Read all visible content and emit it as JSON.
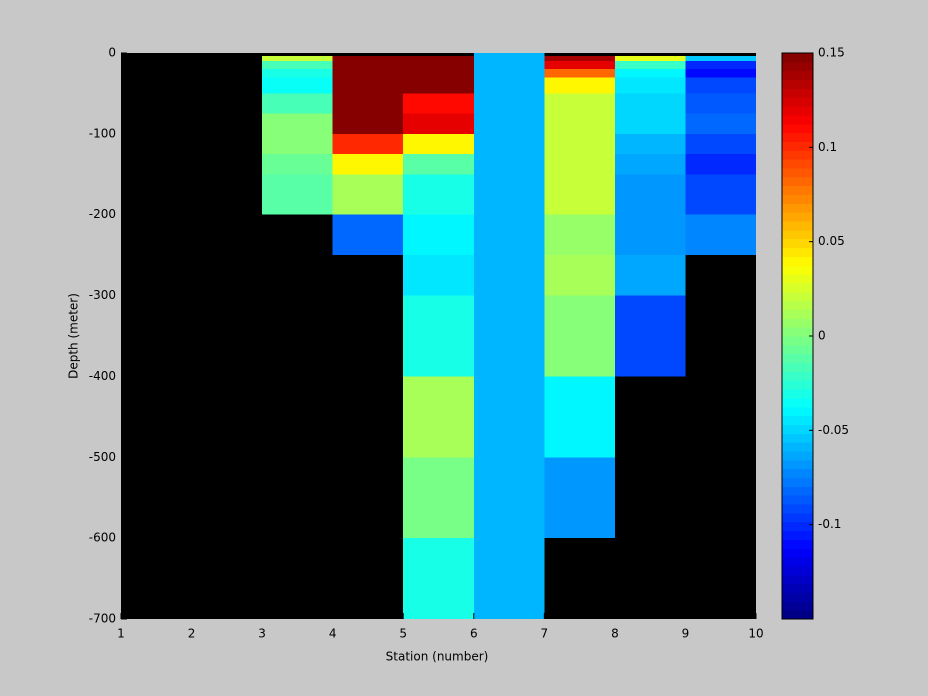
{
  "chart_data": {
    "type": "heatmap",
    "xlabel": "Station (number)",
    "ylabel": "Depth (meter)",
    "x_edges": [
      1,
      2,
      3,
      4,
      5,
      6,
      7,
      8,
      9,
      10
    ],
    "y_edges": [
      0,
      -4,
      -10,
      -20,
      -30,
      -50,
      -75,
      -100,
      -125,
      -150,
      -200,
      -250,
      -300,
      -400,
      -500,
      -600,
      -700
    ],
    "z": [
      [
        null,
        null,
        null,
        null,
        null,
        -0.06,
        null,
        null,
        null
      ],
      [
        null,
        null,
        0.02,
        0.15,
        0.15,
        -0.06,
        0.14,
        0.03,
        -0.055
      ],
      [
        null,
        null,
        -0.015,
        0.15,
        0.15,
        -0.06,
        0.12,
        -0.02,
        -0.1
      ],
      [
        null,
        null,
        -0.03,
        0.15,
        0.15,
        -0.06,
        0.08,
        -0.04,
        -0.11
      ],
      [
        null,
        null,
        -0.035,
        0.15,
        0.15,
        -0.06,
        0.04,
        -0.045,
        -0.09
      ],
      [
        null,
        null,
        -0.015,
        0.15,
        0.11,
        -0.06,
        0.02,
        -0.05,
        -0.085
      ],
      [
        null,
        null,
        0.002,
        0.15,
        0.12,
        -0.06,
        0.02,
        -0.05,
        -0.08
      ],
      [
        null,
        null,
        0.003,
        0.1,
        0.04,
        -0.06,
        0.02,
        -0.06,
        -0.09
      ],
      [
        null,
        null,
        -0.005,
        0.04,
        -0.01,
        -0.06,
        0.02,
        -0.065,
        -0.1
      ],
      [
        null,
        null,
        -0.01,
        0.01,
        -0.03,
        -0.06,
        0.02,
        -0.07,
        -0.09
      ],
      [
        null,
        null,
        null,
        -0.08,
        -0.04,
        -0.06,
        0.008,
        -0.07,
        -0.075
      ],
      [
        null,
        null,
        null,
        null,
        -0.045,
        -0.06,
        0.012,
        -0.065,
        null
      ],
      [
        null,
        null,
        null,
        null,
        -0.03,
        -0.06,
        0.001,
        -0.09,
        null
      ],
      [
        null,
        null,
        null,
        null,
        0.01,
        -0.06,
        -0.04,
        null,
        null
      ],
      [
        null,
        null,
        null,
        null,
        -0.003,
        -0.06,
        -0.07,
        null,
        null
      ],
      [
        null,
        null,
        null,
        null,
        -0.03,
        -0.06,
        null,
        null,
        null
      ]
    ],
    "xlim": [
      1,
      10
    ],
    "xticks": [
      1,
      2,
      3,
      4,
      5,
      6,
      7,
      8,
      9,
      10
    ],
    "ylim": [
      -700,
      0
    ],
    "yticks": [
      0,
      -100,
      -200,
      -300,
      -400,
      -500,
      -600,
      -700
    ],
    "clim": [
      -0.15,
      0.15
    ],
    "cticks": [
      0.15,
      0.1,
      0.05,
      0,
      -0.05,
      -0.1
    ],
    "colormap": "jet",
    "nan_color": "#000000",
    "background": "#c8c8c8"
  }
}
